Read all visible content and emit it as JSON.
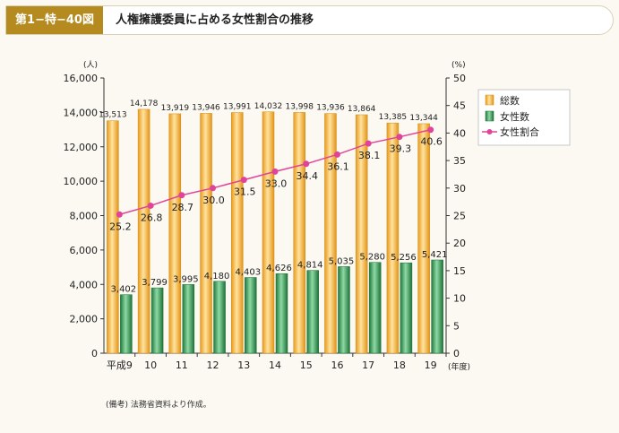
{
  "header": {
    "figure_label": "第1−特−40図",
    "title": "人権擁護委員に占める女性割合の推移"
  },
  "note": "(備考)  法務省資料より作成。",
  "chart_data": {
    "type": "bar",
    "categories": [
      "平成9",
      "10",
      "11",
      "12",
      "13",
      "14",
      "15",
      "16",
      "17",
      "18",
      "19"
    ],
    "x_unit": "(年度)",
    "y_left": {
      "unit": "(人)",
      "ylim": [
        0,
        16000
      ],
      "ticks": [
        "0",
        "2,000",
        "4,000",
        "6,000",
        "8,000",
        "10,000",
        "12,000",
        "14,000",
        "16,000"
      ],
      "tick_values": [
        0,
        2000,
        4000,
        6000,
        8000,
        10000,
        12000,
        14000,
        16000
      ]
    },
    "y_right": {
      "unit": "(%)",
      "ylim": [
        0,
        50
      ],
      "ticks": [
        "0",
        "5",
        "10",
        "15",
        "20",
        "25",
        "30",
        "35",
        "40",
        "45",
        "50"
      ],
      "tick_values": [
        0,
        5,
        10,
        15,
        20,
        25,
        30,
        35,
        40,
        45,
        50
      ]
    },
    "series": [
      {
        "name": "総数",
        "kind": "bar",
        "axis": "left",
        "color": "#f5b942",
        "values": [
          13513,
          14178,
          13919,
          13946,
          13991,
          14032,
          13998,
          13936,
          13864,
          13385,
          13344
        ],
        "labels": [
          "13,513",
          "14,178",
          "13,919",
          "13,946",
          "13,991",
          "14,032",
          "13,998",
          "13,936",
          "13,864",
          "13,385",
          "13,344"
        ]
      },
      {
        "name": "女性数",
        "kind": "bar",
        "axis": "left",
        "color": "#3a9a5b",
        "values": [
          3402,
          3799,
          3995,
          4180,
          4403,
          4626,
          4814,
          5035,
          5280,
          5256,
          5421
        ],
        "labels": [
          "3,402",
          "3,799",
          "3,995",
          "4,180",
          "4,403",
          "4,626",
          "4,814",
          "5,035",
          "5,280",
          "5,256",
          "5,421"
        ]
      },
      {
        "name": "女性割合",
        "kind": "line",
        "axis": "right",
        "color": "#e0449a",
        "values": [
          25.2,
          26.8,
          28.7,
          30.0,
          31.5,
          33.0,
          34.4,
          36.1,
          38.1,
          39.3,
          40.6
        ],
        "labels": [
          "25.2",
          "26.8",
          "28.7",
          "30.0",
          "31.5",
          "33.0",
          "34.4",
          "36.1",
          "38.1",
          "39.3",
          "40.6"
        ]
      }
    ],
    "legend_position": "top-right"
  }
}
